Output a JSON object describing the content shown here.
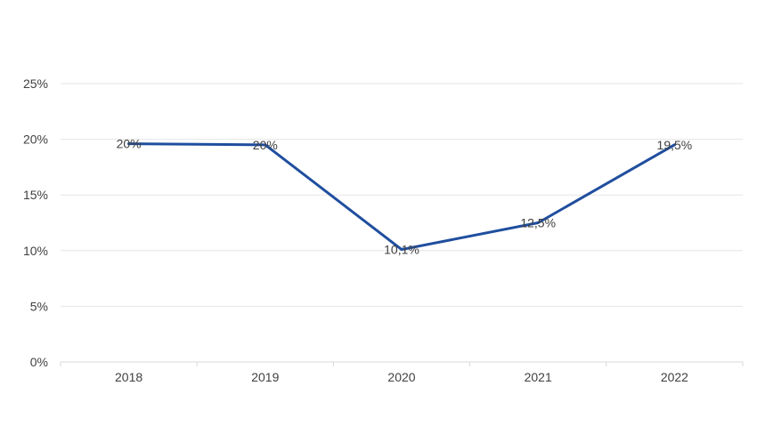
{
  "chart_data": {
    "type": "line",
    "title": "",
    "xlabel": "",
    "ylabel": "",
    "categories": [
      "2018",
      "2019",
      "2020",
      "2021",
      "2022"
    ],
    "series": [
      {
        "values": [
          19.6,
          19.5,
          10.1,
          12.5,
          19.5
        ],
        "data_labels": [
          "20%",
          "20%",
          "10,1%",
          "12,5%",
          "19,5%"
        ],
        "color": "#1f4e9e"
      }
    ],
    "ylim": [
      0,
      25
    ],
    "yticks": [
      0,
      5,
      10,
      15,
      20,
      25
    ],
    "ytick_labels": [
      "0%",
      "5%",
      "10%",
      "15%",
      "20%",
      "25%"
    ],
    "grid": true,
    "legend": "none"
  }
}
